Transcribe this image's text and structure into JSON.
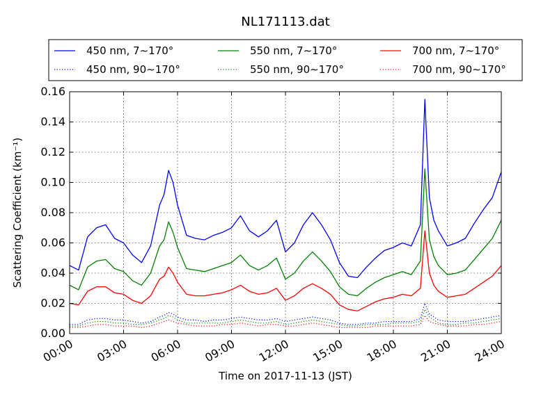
{
  "chart_data": {
    "type": "line",
    "title": "NL171113.dat",
    "xlabel": "Time on 2017-11-13 (JST)",
    "ylabel": "Scattering Coefficient (km⁻¹)",
    "xlim": [
      0,
      24
    ],
    "ylim": [
      0,
      0.16
    ],
    "xticks": [
      0,
      3,
      6,
      9,
      12,
      15,
      18,
      21,
      24
    ],
    "xtick_labels": [
      "00:00",
      "03:00",
      "06:00",
      "09:00",
      "12:00",
      "15:00",
      "18:00",
      "21:00",
      "24:00"
    ],
    "yticks": [
      0,
      0.02,
      0.04,
      0.06,
      0.08,
      0.1,
      0.12,
      0.14,
      0.16
    ],
    "ytick_labels": [
      "0.00",
      "0.02",
      "0.04",
      "0.06",
      "0.08",
      "0.10",
      "0.12",
      "0.14",
      "0.16"
    ],
    "grid": true,
    "legend": {
      "position": "top",
      "columns": 3
    },
    "x": [
      0,
      0.5,
      1,
      1.5,
      2,
      2.5,
      3,
      3.5,
      4,
      4.5,
      5,
      5.25,
      5.5,
      5.75,
      6,
      6.5,
      7,
      7.5,
      8,
      8.5,
      9,
      9.5,
      10,
      10.5,
      11,
      11.5,
      12,
      12.5,
      13,
      13.5,
      14,
      14.5,
      15,
      15.5,
      16,
      16.5,
      17,
      17.5,
      18,
      18.5,
      19,
      19.5,
      19.75,
      20,
      20.25,
      20.5,
      21,
      21.5,
      22,
      22.5,
      23,
      23.5,
      24
    ],
    "series": [
      {
        "name": "450 nm, 7∼170°",
        "color": "#0000ff",
        "style": "solid",
        "values": [
          0.045,
          0.042,
          0.064,
          0.07,
          0.072,
          0.063,
          0.06,
          0.052,
          0.047,
          0.058,
          0.085,
          0.092,
          0.108,
          0.1,
          0.085,
          0.065,
          0.063,
          0.062,
          0.065,
          0.067,
          0.07,
          0.078,
          0.068,
          0.064,
          0.068,
          0.075,
          0.054,
          0.06,
          0.072,
          0.08,
          0.072,
          0.062,
          0.047,
          0.038,
          0.037,
          0.044,
          0.05,
          0.055,
          0.057,
          0.06,
          0.058,
          0.072,
          0.155,
          0.09,
          0.075,
          0.068,
          0.058,
          0.06,
          0.063,
          0.073,
          0.082,
          0.09,
          0.107
        ]
      },
      {
        "name": "450 nm, 90∼170°",
        "color": "#0000ff",
        "style": "dotted",
        "values": [
          0.006,
          0.006,
          0.009,
          0.01,
          0.01,
          0.009,
          0.009,
          0.008,
          0.007,
          0.008,
          0.011,
          0.012,
          0.014,
          0.013,
          0.011,
          0.009,
          0.009,
          0.008,
          0.009,
          0.009,
          0.01,
          0.011,
          0.01,
          0.009,
          0.009,
          0.01,
          0.008,
          0.009,
          0.01,
          0.011,
          0.01,
          0.009,
          0.007,
          0.006,
          0.006,
          0.007,
          0.007,
          0.008,
          0.008,
          0.008,
          0.008,
          0.01,
          0.02,
          0.013,
          0.011,
          0.009,
          0.008,
          0.008,
          0.008,
          0.009,
          0.01,
          0.011,
          0.012
        ]
      },
      {
        "name": "550 nm, 7∼170°",
        "color": "#008000",
        "style": "solid",
        "values": [
          0.032,
          0.029,
          0.044,
          0.048,
          0.049,
          0.043,
          0.041,
          0.035,
          0.032,
          0.04,
          0.058,
          0.062,
          0.074,
          0.067,
          0.057,
          0.043,
          0.042,
          0.041,
          0.043,
          0.045,
          0.047,
          0.052,
          0.045,
          0.042,
          0.045,
          0.05,
          0.036,
          0.04,
          0.048,
          0.054,
          0.048,
          0.041,
          0.031,
          0.026,
          0.025,
          0.03,
          0.034,
          0.037,
          0.039,
          0.041,
          0.039,
          0.048,
          0.109,
          0.062,
          0.051,
          0.045,
          0.039,
          0.04,
          0.042,
          0.049,
          0.056,
          0.063,
          0.075
        ]
      },
      {
        "name": "550 nm, 90∼170°",
        "color": "#008000",
        "style": "dotted",
        "values": [
          0.005,
          0.005,
          0.007,
          0.008,
          0.008,
          0.007,
          0.007,
          0.006,
          0.006,
          0.007,
          0.009,
          0.01,
          0.012,
          0.011,
          0.009,
          0.007,
          0.007,
          0.007,
          0.007,
          0.007,
          0.008,
          0.009,
          0.008,
          0.007,
          0.007,
          0.008,
          0.006,
          0.007,
          0.008,
          0.009,
          0.008,
          0.007,
          0.006,
          0.005,
          0.005,
          0.006,
          0.006,
          0.006,
          0.007,
          0.007,
          0.007,
          0.008,
          0.016,
          0.011,
          0.009,
          0.007,
          0.006,
          0.006,
          0.007,
          0.007,
          0.008,
          0.009,
          0.01
        ]
      },
      {
        "name": "700 nm, 7∼170°",
        "color": "#ff0000",
        "style": "solid",
        "values": [
          0.02,
          0.019,
          0.028,
          0.031,
          0.031,
          0.027,
          0.026,
          0.022,
          0.02,
          0.025,
          0.036,
          0.038,
          0.044,
          0.04,
          0.034,
          0.026,
          0.025,
          0.025,
          0.026,
          0.027,
          0.029,
          0.032,
          0.028,
          0.026,
          0.027,
          0.03,
          0.022,
          0.025,
          0.03,
          0.033,
          0.03,
          0.026,
          0.019,
          0.016,
          0.015,
          0.018,
          0.021,
          0.023,
          0.024,
          0.026,
          0.025,
          0.03,
          0.068,
          0.04,
          0.032,
          0.028,
          0.024,
          0.025,
          0.026,
          0.03,
          0.034,
          0.038,
          0.045
        ]
      },
      {
        "name": "700 nm, 90∼170°",
        "color": "#ff0000",
        "style": "dotted",
        "values": [
          0.004,
          0.004,
          0.005,
          0.006,
          0.006,
          0.005,
          0.005,
          0.005,
          0.004,
          0.005,
          0.007,
          0.008,
          0.009,
          0.008,
          0.007,
          0.006,
          0.005,
          0.005,
          0.005,
          0.006,
          0.006,
          0.007,
          0.006,
          0.005,
          0.006,
          0.006,
          0.005,
          0.005,
          0.006,
          0.007,
          0.006,
          0.005,
          0.004,
          0.004,
          0.004,
          0.004,
          0.005,
          0.005,
          0.005,
          0.005,
          0.005,
          0.006,
          0.012,
          0.008,
          0.007,
          0.006,
          0.005,
          0.005,
          0.005,
          0.006,
          0.006,
          0.007,
          0.008
        ]
      }
    ]
  }
}
